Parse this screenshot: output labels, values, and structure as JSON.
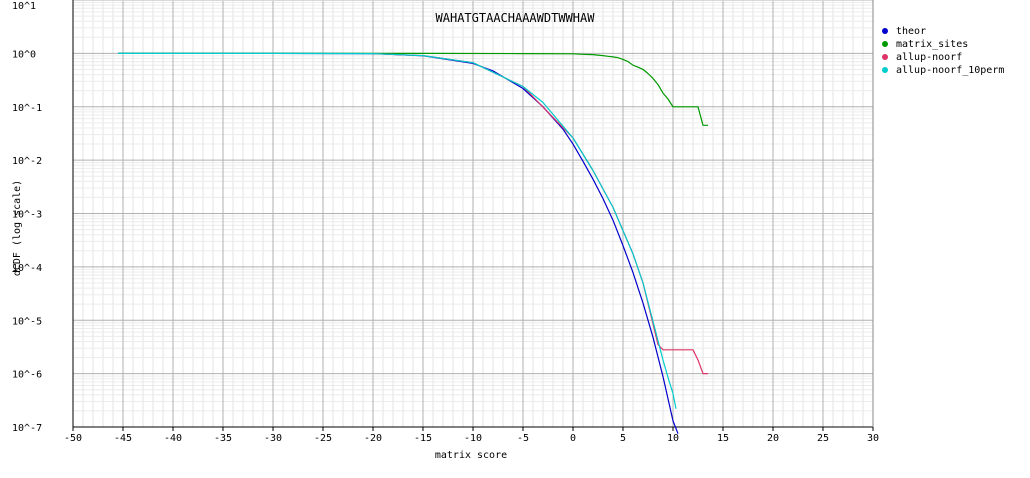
{
  "chart_data": {
    "type": "line",
    "title": "WAHATGTAACHAAAWDTWWHAW",
    "xlabel": "matrix score",
    "ylabel": "dCDF (log scale)",
    "xlim": [
      -50,
      30
    ],
    "ylim_log10": [
      -7,
      1
    ],
    "y_scale": "log",
    "grid": true,
    "legend_position": "right",
    "x_ticks": [
      -50,
      -45,
      -40,
      -35,
      -30,
      -25,
      -20,
      -15,
      -10,
      -5,
      0,
      5,
      10,
      15,
      20,
      25,
      30
    ],
    "y_ticks": [
      {
        "exp": 1,
        "label": "10^1"
      },
      {
        "exp": 0,
        "label": "10^0"
      },
      {
        "exp": -1,
        "label": "10^-1"
      },
      {
        "exp": -2,
        "label": "10^-2"
      },
      {
        "exp": -3,
        "label": "10^-3"
      },
      {
        "exp": -4,
        "label": "10^-4"
      },
      {
        "exp": -5,
        "label": "10^-5"
      },
      {
        "exp": -6,
        "label": "10^-6"
      },
      {
        "exp": -7,
        "label": "10^-7"
      }
    ],
    "series": [
      {
        "name": "theor",
        "color": "#0000cc",
        "x": [
          -45.5,
          -30,
          -20,
          -15,
          -10,
          -8,
          -5,
          -3,
          -1,
          0,
          1,
          2,
          3,
          4,
          5,
          6,
          7,
          8,
          9,
          10,
          10.5
        ],
        "y": [
          1,
          1,
          0.99,
          0.9,
          0.65,
          0.47,
          0.22,
          0.1,
          0.038,
          0.02,
          0.0095,
          0.0044,
          0.0019,
          0.00075,
          0.00025,
          7.8e-05,
          2.1e-05,
          4.8e-06,
          8.8e-07,
          1.3e-07,
          7.5e-08
        ]
      },
      {
        "name": "matrix_sites",
        "color": "#009900",
        "x": [
          -45.5,
          -20,
          -15,
          -5,
          0,
          1,
          2,
          2.5,
          3,
          3.5,
          4,
          4.5,
          5,
          5.5,
          6,
          6.5,
          7,
          7.5,
          8,
          8.5,
          9,
          9.5,
          10,
          11,
          12,
          12.5,
          13,
          13.5
        ],
        "y": [
          1,
          1,
          1,
          0.99,
          0.98,
          0.96,
          0.95,
          0.93,
          0.91,
          0.88,
          0.86,
          0.83,
          0.77,
          0.7,
          0.6,
          0.55,
          0.5,
          0.42,
          0.34,
          0.26,
          0.18,
          0.14,
          0.1,
          0.1,
          0.1,
          0.1,
          0.045,
          0.045
        ]
      },
      {
        "name": "allup-noorf",
        "color": "#dd3366",
        "x": [
          -20,
          -15,
          -10,
          -5,
          0,
          2,
          4,
          6,
          7,
          8,
          8.5,
          9,
          10,
          11,
          12,
          12.5,
          13,
          13.5
        ],
        "y": [
          0.99,
          0.91,
          0.67,
          0.24,
          0.026,
          0.0064,
          0.0013,
          0.000175,
          5e-05,
          8.5e-06,
          3.5e-06,
          2.8e-06,
          2.8e-06,
          2.8e-06,
          2.8e-06,
          1.8e-06,
          1e-06,
          1e-06
        ]
      },
      {
        "name": "allup-noorf_10perm",
        "color": "#00cccc",
        "x": [
          -45.5,
          -30,
          -20,
          -15,
          -10,
          -5,
          -3,
          0,
          2,
          4,
          6,
          7,
          8,
          9,
          9.5,
          10,
          10.3
        ],
        "y": [
          1,
          1,
          0.99,
          0.91,
          0.67,
          0.24,
          0.12,
          0.026,
          0.0064,
          0.0013,
          0.000175,
          5e-05,
          9.5e-06,
          1.8e-06,
          8.5e-07,
          4.2e-07,
          2.2e-07
        ]
      }
    ]
  }
}
